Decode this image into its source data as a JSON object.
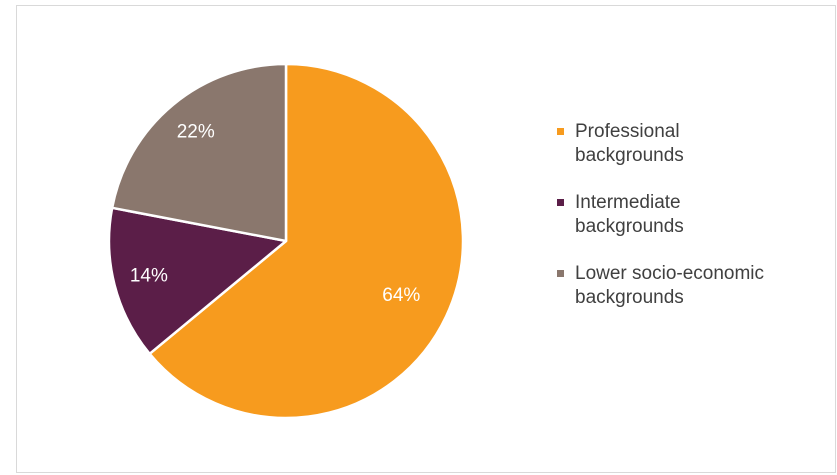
{
  "chart_data": {
    "type": "pie",
    "slices": [
      {
        "name": "Professional backgrounds",
        "label": "Professional\nbackgrounds",
        "value": 64,
        "display": "64%",
        "color": "#F79B1E"
      },
      {
        "name": "Intermediate backgrounds",
        "label": "Intermediate\nbackgrounds",
        "value": 14,
        "display": "14%",
        "color": "#5B1E48"
      },
      {
        "name": "Lower socio-economic backgrounds",
        "label": "Lower socio-economic\nbackgrounds",
        "value": 22,
        "display": "22%",
        "color": "#8A776D"
      }
    ],
    "start_angle_deg": 0,
    "direction": "clockwise",
    "legend_position": "right"
  }
}
